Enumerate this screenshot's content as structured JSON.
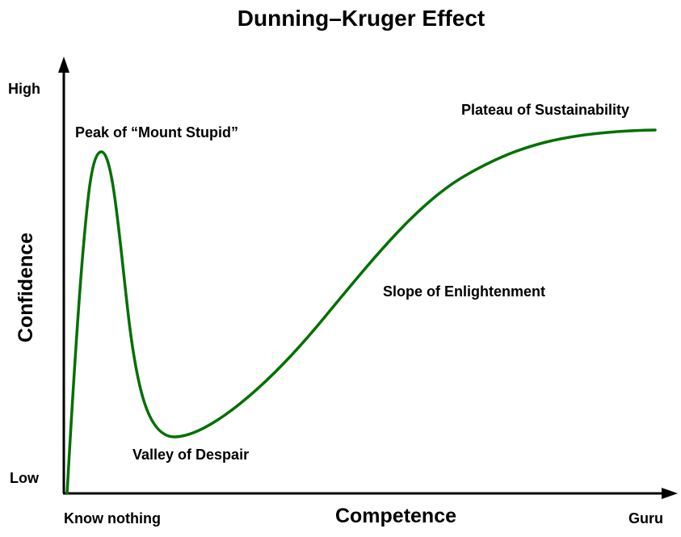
{
  "title": "Dunning–Kruger Effect",
  "y_axis": {
    "title": "Confidence",
    "high_label": "High",
    "low_label": "Low"
  },
  "x_axis": {
    "title": "Competence",
    "low_label": "Know nothing",
    "high_label": "Guru"
  },
  "annotations": {
    "peak": "Peak of “Mount Stupid”",
    "valley": "Valley of Despair",
    "slope": "Slope of Enlightenment",
    "plateau": "Plateau of Sustainability"
  },
  "colors": {
    "curve": "#007000",
    "axes": "#000000",
    "text": "#000000",
    "background": "#ffffff"
  }
}
